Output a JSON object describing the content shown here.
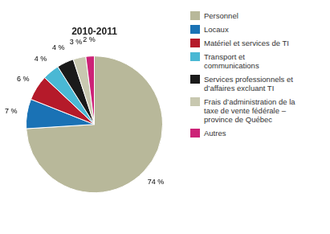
{
  "chart_data": {
    "type": "pie",
    "title": "2010-2011",
    "categories": [
      "Personnel",
      "Locaux",
      "Matériel et services de TI",
      "Transport et\ncommunications",
      "Services professionnels et\nd’affaires excluant TI",
      "Frais d’administration de la\ntaxe de vente fédérale –\nprovince de Québec",
      "Autres"
    ],
    "values": [
      74,
      7,
      6,
      4,
      4,
      3,
      2
    ],
    "value_labels": [
      "74 %",
      "7 %",
      "6 %",
      "4 %",
      "4 %",
      "3 %",
      "2 %"
    ],
    "colors": [
      "#b8b89a",
      "#1a72b5",
      "#b51a2a",
      "#4ab8d4",
      "#1a1a1a",
      "#c8c8b0",
      "#cc2277"
    ],
    "data_labels": true,
    "legend": "right"
  }
}
